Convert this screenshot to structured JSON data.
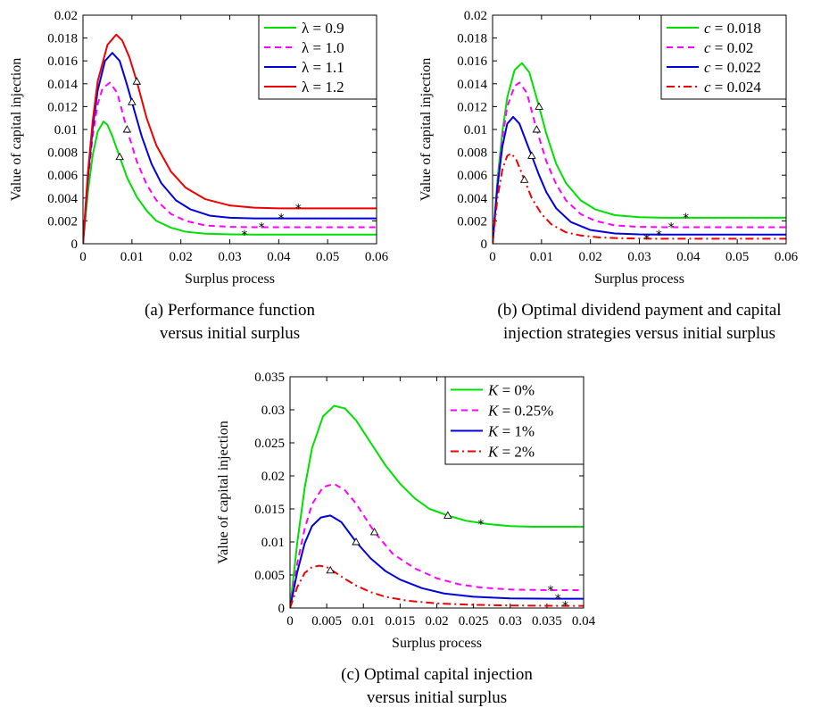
{
  "chart_data": [
    {
      "type": "line",
      "title": "",
      "xlabel": "Surplus process",
      "ylabel": "Value of capital injection",
      "caption": [
        "(a) Performance function",
        "versus initial surplus"
      ],
      "xlim": [
        0,
        0.06
      ],
      "ylim": [
        0,
        0.02
      ],
      "xticks": [
        "0",
        "0.01",
        "0.02",
        "0.03",
        "0.04",
        "0.05",
        "0.06"
      ],
      "yticks": [
        "0",
        "0.002",
        "0.004",
        "0.006",
        "0.008",
        "0.01",
        "0.012",
        "0.014",
        "0.016",
        "0.018",
        "0.02"
      ],
      "legend_position": "top-right",
      "series": [
        {
          "name": "λ = 0.9",
          "color": "#00e000",
          "style": "solid",
          "x": [
            0,
            0.001,
            0.002,
            0.003,
            0.0042,
            0.005,
            0.006,
            0.0075,
            0.009,
            0.011,
            0.013,
            0.015,
            0.018,
            0.021,
            0.025,
            0.03,
            0.035,
            0.04,
            0.05,
            0.06
          ],
          "y": [
            0,
            0.0045,
            0.0078,
            0.0098,
            0.0107,
            0.0104,
            0.0094,
            0.0076,
            0.0058,
            0.0041,
            0.0029,
            0.002,
            0.0014,
            0.00105,
            0.00088,
            0.00082,
            0.0008,
            0.0008,
            0.0008,
            0.0008
          ],
          "triangle": [
            0.0075,
            0.0076
          ],
          "star": [
            0.033,
            0.0008
          ]
        },
        {
          "name": "λ = 1.0",
          "color": "#ff00ff",
          "style": "dashed",
          "x": [
            0,
            0.001,
            0.002,
            0.003,
            0.004,
            0.0055,
            0.007,
            0.009,
            0.011,
            0.013,
            0.015,
            0.018,
            0.021,
            0.025,
            0.03,
            0.035,
            0.04,
            0.05,
            0.06
          ],
          "y": [
            0,
            0.0055,
            0.0095,
            0.0122,
            0.0136,
            0.0141,
            0.0132,
            0.01,
            0.0072,
            0.0052,
            0.0038,
            0.0026,
            0.002,
            0.0016,
            0.00148,
            0.00145,
            0.00145,
            0.00145,
            0.00145
          ],
          "triangle": [
            0.009,
            0.01
          ],
          "star": [
            0.0365,
            0.00145
          ]
        },
        {
          "name": "λ = 1.1",
          "color": "#0000dd",
          "style": "solid",
          "x": [
            0,
            0.001,
            0.002,
            0.003,
            0.0045,
            0.006,
            0.0075,
            0.009,
            0.01,
            0.012,
            0.014,
            0.016,
            0.019,
            0.022,
            0.026,
            0.03,
            0.035,
            0.04,
            0.05,
            0.06
          ],
          "y": [
            0,
            0.0058,
            0.0102,
            0.0134,
            0.016,
            0.0167,
            0.016,
            0.0139,
            0.0124,
            0.0094,
            0.007,
            0.0053,
            0.0038,
            0.003,
            0.00245,
            0.00228,
            0.00222,
            0.00222,
            0.00222,
            0.00222
          ],
          "triangle": [
            0.01,
            0.0124
          ],
          "star": [
            0.0405,
            0.00222
          ]
        },
        {
          "name": "λ = 1.2",
          "color": "#ee0000",
          "style": "solid",
          "x": [
            0,
            0.001,
            0.002,
            0.003,
            0.005,
            0.0068,
            0.008,
            0.0095,
            0.011,
            0.013,
            0.015,
            0.018,
            0.021,
            0.025,
            0.03,
            0.035,
            0.04,
            0.044,
            0.05,
            0.06
          ],
          "y": [
            0,
            0.0062,
            0.0108,
            0.0142,
            0.0174,
            0.0183,
            0.0178,
            0.0163,
            0.0142,
            0.011,
            0.0086,
            0.0063,
            0.0049,
            0.0039,
            0.00335,
            0.00315,
            0.0031,
            0.0031,
            0.0031,
            0.0031
          ],
          "triangle": [
            0.011,
            0.0142
          ],
          "star": [
            0.044,
            0.0031
          ]
        }
      ]
    },
    {
      "type": "line",
      "title": "",
      "xlabel": "Surplus process",
      "ylabel": "Value of capital injection",
      "caption": [
        "(b) Optimal dividend payment and capital",
        "injection strategies versus initial surplus"
      ],
      "xlim": [
        0,
        0.06
      ],
      "ylim": [
        0,
        0.02
      ],
      "xticks": [
        "0",
        "0.01",
        "0.02",
        "0.03",
        "0.04",
        "0.05",
        "0.06"
      ],
      "yticks": [
        "0",
        "0.002",
        "0.004",
        "0.006",
        "0.008",
        "0.01",
        "0.012",
        "0.014",
        "0.016",
        "0.018",
        "0.02"
      ],
      "legend_position": "top-right",
      "series": [
        {
          "name": "c = 0.018",
          "color": "#00e000",
          "style": "solid",
          "x": [
            0,
            0.001,
            0.002,
            0.003,
            0.0045,
            0.006,
            0.0075,
            0.0095,
            0.011,
            0.013,
            0.015,
            0.018,
            0.021,
            0.025,
            0.03,
            0.035,
            0.04,
            0.05,
            0.06
          ],
          "y": [
            0,
            0.0056,
            0.0098,
            0.0128,
            0.0152,
            0.0158,
            0.015,
            0.012,
            0.0096,
            0.007,
            0.0053,
            0.0038,
            0.003,
            0.0025,
            0.00232,
            0.00228,
            0.00228,
            0.00228,
            0.00228
          ],
          "triangle": [
            0.0095,
            0.012
          ],
          "star": [
            0.0395,
            0.00228
          ]
        },
        {
          "name": "c = 0.02",
          "color": "#ff00ff",
          "style": "dashed",
          "x": [
            0,
            0.001,
            0.002,
            0.003,
            0.0045,
            0.0055,
            0.007,
            0.009,
            0.011,
            0.013,
            0.015,
            0.018,
            0.021,
            0.025,
            0.03,
            0.035,
            0.04,
            0.05,
            0.06
          ],
          "y": [
            0,
            0.0052,
            0.0092,
            0.012,
            0.0138,
            0.0141,
            0.0132,
            0.01,
            0.0072,
            0.0052,
            0.0038,
            0.0026,
            0.002,
            0.0016,
            0.00148,
            0.00145,
            0.00145,
            0.00145,
            0.00145
          ],
          "triangle": [
            0.009,
            0.01
          ],
          "star": [
            0.0365,
            0.00145
          ]
        },
        {
          "name": "c = 0.022",
          "color": "#0000dd",
          "style": "solid",
          "x": [
            0,
            0.001,
            0.002,
            0.003,
            0.0042,
            0.0055,
            0.007,
            0.008,
            0.0095,
            0.011,
            0.013,
            0.016,
            0.02,
            0.025,
            0.03,
            0.034,
            0.04,
            0.05,
            0.06
          ],
          "y": [
            0,
            0.005,
            0.0085,
            0.0105,
            0.0111,
            0.0105,
            0.0088,
            0.0077,
            0.006,
            0.0045,
            0.0031,
            0.0019,
            0.0012,
            0.0009,
            0.00082,
            0.0008,
            0.0008,
            0.0008,
            0.0008
          ],
          "triangle": [
            0.008,
            0.0077
          ],
          "star": [
            0.034,
            0.0008
          ]
        },
        {
          "name": "c = 0.024",
          "color": "#ee0000",
          "style": "dashdot",
          "x": [
            0,
            0.001,
            0.002,
            0.003,
            0.0038,
            0.0048,
            0.0065,
            0.008,
            0.01,
            0.012,
            0.015,
            0.018,
            0.022,
            0.026,
            0.03,
            0.032,
            0.04,
            0.05,
            0.06
          ],
          "y": [
            0,
            0.004,
            0.0065,
            0.0077,
            0.0079,
            0.0074,
            0.0056,
            0.004,
            0.0026,
            0.0017,
            0.001,
            0.00072,
            0.00055,
            0.00048,
            0.00045,
            0.00044,
            0.00044,
            0.00044,
            0.00044
          ],
          "triangle": [
            0.0065,
            0.0056
          ],
          "star": [
            0.0315,
            0.00044
          ]
        }
      ]
    },
    {
      "type": "line",
      "title": "",
      "xlabel": "Surplus process",
      "ylabel": "Value of capital injection",
      "caption": [
        "(c) Optimal capital injection",
        "versus initial surplus"
      ],
      "xlim": [
        0,
        0.04
      ],
      "ylim": [
        0,
        0.035
      ],
      "xticks": [
        "0",
        "0.005",
        "0.01",
        "0.015",
        "0.02",
        "0.025",
        "0.03",
        "0.035",
        "0.04"
      ],
      "yticks": [
        "0",
        "0.005",
        "0.01",
        "0.015",
        "0.02",
        "0.025",
        "0.03",
        "0.035"
      ],
      "legend_position": "top-right",
      "series": [
        {
          "name": "K = 0%",
          "color": "#00e000",
          "style": "solid",
          "x": [
            0,
            0.001,
            0.002,
            0.003,
            0.0045,
            0.006,
            0.0075,
            0.009,
            0.011,
            0.013,
            0.015,
            0.017,
            0.019,
            0.0215,
            0.024,
            0.027,
            0.03,
            0.033,
            0.036,
            0.04
          ],
          "y": [
            0,
            0.01,
            0.0182,
            0.0242,
            0.029,
            0.0306,
            0.0302,
            0.0284,
            0.025,
            0.0216,
            0.0188,
            0.0166,
            0.015,
            0.014,
            0.0132,
            0.0127,
            0.0124,
            0.0123,
            0.0123,
            0.0123
          ],
          "triangle": [
            0.0215,
            0.014
          ],
          "star": [
            0.026,
            0.0127
          ]
        },
        {
          "name": "K = 0.25%",
          "color": "#ff00ff",
          "style": "dashed",
          "x": [
            0,
            0.001,
            0.002,
            0.003,
            0.0045,
            0.006,
            0.0075,
            0.009,
            0.0115,
            0.014,
            0.017,
            0.02,
            0.023,
            0.026,
            0.03,
            0.035,
            0.04
          ],
          "y": [
            0,
            0.0068,
            0.012,
            0.0157,
            0.0183,
            0.0188,
            0.0178,
            0.0158,
            0.0115,
            0.0082,
            0.006,
            0.0045,
            0.0036,
            0.0031,
            0.0028,
            0.0027,
            0.0027
          ],
          "triangle": [
            0.0115,
            0.0115
          ],
          "star": [
            0.0355,
            0.0027
          ]
        },
        {
          "name": "K = 1%",
          "color": "#0000dd",
          "style": "solid",
          "x": [
            0,
            0.001,
            0.002,
            0.003,
            0.0042,
            0.0055,
            0.007,
            0.009,
            0.011,
            0.013,
            0.015,
            0.018,
            0.021,
            0.025,
            0.03,
            0.036,
            0.04
          ],
          "y": [
            0,
            0.0055,
            0.0098,
            0.0124,
            0.0137,
            0.014,
            0.013,
            0.01,
            0.0075,
            0.0056,
            0.0043,
            0.003,
            0.0022,
            0.0017,
            0.00145,
            0.0014,
            0.0014
          ],
          "triangle": [
            0.009,
            0.01
          ],
          "star": [
            0.0365,
            0.0014
          ]
        },
        {
          "name": "K = 2%",
          "color": "#ee0000",
          "style": "dashdot",
          "x": [
            0,
            0.001,
            0.002,
            0.003,
            0.004,
            0.005,
            0.006,
            0.0075,
            0.009,
            0.011,
            0.013,
            0.016,
            0.02,
            0.025,
            0.03,
            0.0375,
            0.04
          ],
          "y": [
            0,
            0.0032,
            0.0053,
            0.0062,
            0.0064,
            0.0062,
            0.0055,
            0.0044,
            0.0034,
            0.0024,
            0.0017,
            0.0011,
            0.0007,
            0.00048,
            0.00038,
            0.00032,
            0.00032
          ],
          "triangle": [
            0.0055,
            0.0057
          ],
          "star": [
            0.0375,
            0.00032
          ]
        }
      ]
    }
  ]
}
